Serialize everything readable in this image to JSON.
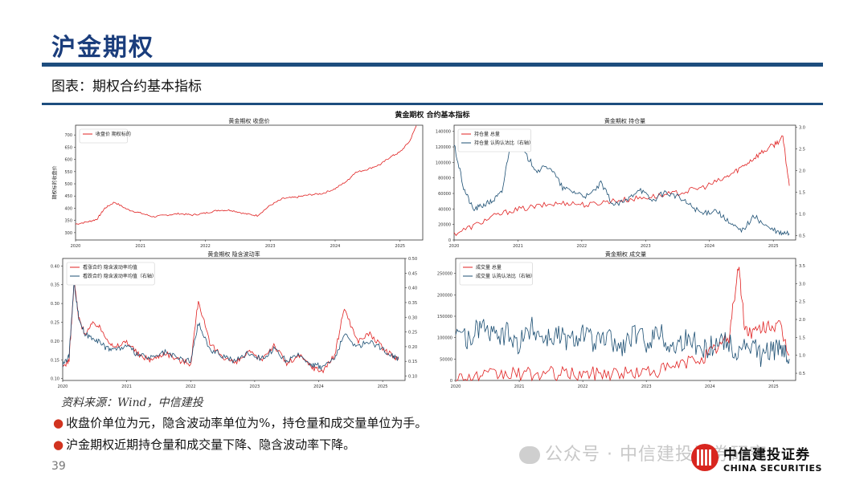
{
  "page": {
    "title": "沪金期权",
    "subtitle": "图表：期权合约基本指标",
    "figure_title": "黄金期权 合约基本指标",
    "source": "资料来源：Wind，中信建投",
    "bullets": [
      "收盘价单位为元，隐含波动率单位为%，持仓量和成交量单位为手。",
      "沪金期权近期持仓量和成交量下降、隐含波动率下降。"
    ],
    "page_number": "39",
    "watermark": "公众号 · 中信建投证券研究",
    "logo_cn": "中信建投证券",
    "logo_en": "CHINA SECURITIES"
  },
  "chart_data": [
    {
      "type": "line",
      "title": "黄金期权 收盘价",
      "ylabel": "期权标的收盘价",
      "x_ticks": [
        "2020",
        "2021",
        "2022",
        "2023",
        "2024",
        "2025"
      ],
      "x_range": [
        2020.0,
        2025.35
      ],
      "y_ticks": [
        "300",
        "350",
        "400",
        "450",
        "500",
        "550",
        "600",
        "650",
        "700"
      ],
      "ylim": [
        270,
        740
      ],
      "legend": "top-left",
      "series": [
        {
          "name": "收盘价 期权标的",
          "color": "#e02020",
          "axis": "left",
          "x": [
            2020.0,
            2020.2,
            2020.33,
            2020.45,
            2020.6,
            2020.8,
            2021.0,
            2021.2,
            2021.4,
            2021.6,
            2021.8,
            2022.0,
            2022.2,
            2022.4,
            2022.6,
            2022.8,
            2023.0,
            2023.2,
            2023.4,
            2023.6,
            2023.8,
            2024.0,
            2024.2,
            2024.3,
            2024.5,
            2024.7,
            2024.85,
            2025.0,
            2025.15,
            2025.25
          ],
          "y": [
            335,
            345,
            355,
            400,
            425,
            395,
            380,
            365,
            372,
            378,
            372,
            380,
            392,
            392,
            378,
            370,
            412,
            440,
            445,
            455,
            460,
            480,
            515,
            545,
            560,
            580,
            610,
            630,
            675,
            738
          ]
        }
      ]
    },
    {
      "type": "line",
      "title": "黄金期权 持仓量",
      "x_ticks": [
        "2020",
        "2021",
        "2022",
        "2023",
        "2024",
        "2025"
      ],
      "x_range": [
        2020.0,
        2025.35
      ],
      "y_ticks": [
        "0",
        "20000",
        "40000",
        "60000",
        "80000",
        "100000",
        "120000",
        "140000"
      ],
      "ylim": [
        0,
        148000
      ],
      "y2_ticks": [
        "0.5",
        "1.0",
        "1.5",
        "2.0",
        "2.5",
        "3.0"
      ],
      "y2lim": [
        0.4,
        3.05
      ],
      "legend": "top-left",
      "series": [
        {
          "name": "持仓量 总量",
          "color": "#e02020",
          "axis": "left",
          "x": [
            2020.0,
            2020.3,
            2020.6,
            2020.9,
            2021.2,
            2021.5,
            2021.8,
            2022.1,
            2022.4,
            2022.7,
            2023.0,
            2023.3,
            2023.6,
            2023.9,
            2024.2,
            2024.4,
            2024.6,
            2024.8,
            2025.0,
            2025.15,
            2025.25
          ],
          "y": [
            8000,
            18000,
            30000,
            38000,
            42000,
            46000,
            48000,
            45000,
            50000,
            52000,
            55000,
            58000,
            62000,
            68000,
            78000,
            88000,
            100000,
            112000,
            122000,
            132000,
            70000
          ]
        },
        {
          "name": "持仓量 认购认沽比（右轴）",
          "color": "#1c4f73",
          "axis": "right",
          "x": [
            2020.0,
            2020.15,
            2020.3,
            2020.45,
            2020.6,
            2020.75,
            2020.9,
            2021.1,
            2021.3,
            2021.5,
            2021.7,
            2021.9,
            2022.1,
            2022.3,
            2022.5,
            2022.7,
            2022.9,
            2023.1,
            2023.3,
            2023.5,
            2023.7,
            2023.9,
            2024.1,
            2024.3,
            2024.5,
            2024.7,
            2024.9,
            2025.1,
            2025.25
          ],
          "y": [
            2.6,
            1.6,
            1.1,
            1.2,
            1.3,
            1.5,
            2.8,
            2.4,
            2.0,
            2.1,
            1.6,
            1.5,
            1.4,
            1.7,
            1.2,
            1.3,
            1.6,
            1.3,
            1.5,
            1.4,
            1.2,
            1.0,
            1.1,
            0.8,
            0.6,
            0.95,
            0.7,
            0.55,
            0.55
          ]
        }
      ]
    },
    {
      "type": "line",
      "title": "黄金期权 隐含波动率",
      "x_ticks": [
        "2020",
        "2021",
        "2022",
        "2023",
        "2024",
        "2025"
      ],
      "x_range": [
        2020.0,
        2025.35
      ],
      "y_ticks": [
        "0.10",
        "0.15",
        "0.20",
        "0.25",
        "0.30",
        "0.35",
        "0.40"
      ],
      "ylim": [
        0.095,
        0.42
      ],
      "y2_ticks": [
        "0.10",
        "0.15",
        "0.20",
        "0.25",
        "0.30",
        "0.35",
        "0.40",
        "0.45",
        "0.50"
      ],
      "y2lim": [
        0.085,
        0.5
      ],
      "legend": "top-left",
      "series": [
        {
          "name": "看涨合约 隐含波动率均值",
          "color": "#e02020",
          "axis": "left",
          "x": [
            2020.0,
            2020.1,
            2020.18,
            2020.25,
            2020.35,
            2020.5,
            2020.65,
            2020.8,
            2021.0,
            2021.2,
            2021.4,
            2021.6,
            2021.8,
            2022.0,
            2022.12,
            2022.3,
            2022.5,
            2022.7,
            2022.9,
            2023.1,
            2023.3,
            2023.5,
            2023.7,
            2023.9,
            2024.05,
            2024.25,
            2024.4,
            2024.6,
            2024.8,
            2025.0,
            2025.15,
            2025.25
          ],
          "y": [
            0.13,
            0.15,
            0.36,
            0.26,
            0.22,
            0.25,
            0.22,
            0.18,
            0.2,
            0.16,
            0.15,
            0.17,
            0.15,
            0.14,
            0.31,
            0.19,
            0.16,
            0.14,
            0.17,
            0.15,
            0.19,
            0.14,
            0.16,
            0.13,
            0.12,
            0.16,
            0.29,
            0.2,
            0.22,
            0.18,
            0.16,
            0.15
          ]
        },
        {
          "name": "看跌合约 隐含波动率均值（右轴）",
          "color": "#1c4f73",
          "axis": "right",
          "x": [
            2020.0,
            2020.1,
            2020.18,
            2020.25,
            2020.35,
            2020.5,
            2020.65,
            2020.8,
            2021.0,
            2021.2,
            2021.4,
            2021.6,
            2021.8,
            2022.0,
            2022.12,
            2022.3,
            2022.5,
            2022.7,
            2022.9,
            2023.1,
            2023.3,
            2023.5,
            2023.7,
            2023.9,
            2024.05,
            2024.25,
            2024.4,
            2024.6,
            2024.8,
            2025.0,
            2025.15,
            2025.25
          ],
          "y": [
            0.14,
            0.17,
            0.42,
            0.3,
            0.24,
            0.23,
            0.2,
            0.19,
            0.2,
            0.17,
            0.16,
            0.18,
            0.16,
            0.15,
            0.28,
            0.19,
            0.17,
            0.15,
            0.18,
            0.16,
            0.19,
            0.15,
            0.17,
            0.14,
            0.13,
            0.16,
            0.24,
            0.2,
            0.22,
            0.19,
            0.17,
            0.16
          ]
        }
      ]
    },
    {
      "type": "line",
      "title": "黄金期权 成交量",
      "x_ticks": [
        "2020",
        "2021",
        "2022",
        "2023",
        "2024",
        "2025"
      ],
      "x_range": [
        2020.0,
        2025.35
      ],
      "y_ticks": [
        "0",
        "50000",
        "100000",
        "150000",
        "200000",
        "250000"
      ],
      "ylim": [
        0,
        285000
      ],
      "y2_ticks": [
        "0.5",
        "1.0",
        "1.5",
        "2.0",
        "2.5",
        "3.0",
        "3.5"
      ],
      "y2lim": [
        0.3,
        3.7
      ],
      "legend": "top-left",
      "series": [
        {
          "name": "成交量 总量",
          "color": "#e02020",
          "axis": "left",
          "x": [
            2020.0,
            2020.3,
            2020.6,
            2020.9,
            2021.2,
            2021.5,
            2021.8,
            2022.1,
            2022.4,
            2022.7,
            2023.0,
            2023.3,
            2023.6,
            2023.9,
            2024.1,
            2024.3,
            2024.45,
            2024.55,
            2024.7,
            2024.9,
            2025.1,
            2025.25
          ],
          "y": [
            6000,
            8000,
            12000,
            15000,
            14000,
            16000,
            15000,
            15000,
            18000,
            17000,
            20000,
            25000,
            40000,
            55000,
            75000,
            100000,
            270000,
            120000,
            110000,
            130000,
            125000,
            60000
          ]
        },
        {
          "name": "成交量 认购认沽比（右轴）",
          "color": "#1c4f73",
          "axis": "right",
          "x": [
            2020.0,
            2020.2,
            2020.4,
            2020.6,
            2020.8,
            2021.0,
            2021.2,
            2021.4,
            2021.6,
            2021.8,
            2022.0,
            2022.2,
            2022.4,
            2022.6,
            2022.8,
            2023.0,
            2023.2,
            2023.4,
            2023.6,
            2023.8,
            2024.0,
            2024.2,
            2024.4,
            2024.6,
            2024.8,
            2025.0,
            2025.15,
            2025.25
          ],
          "y": [
            1.8,
            1.4,
            1.9,
            1.5,
            1.6,
            1.3,
            1.8,
            1.5,
            1.6,
            1.4,
            1.7,
            1.3,
            1.5,
            1.2,
            1.6,
            1.4,
            1.7,
            1.2,
            1.5,
            1.3,
            1.2,
            1.5,
            1.1,
            1.3,
            1.0,
            1.2,
            1.1,
            0.9
          ]
        }
      ]
    }
  ]
}
